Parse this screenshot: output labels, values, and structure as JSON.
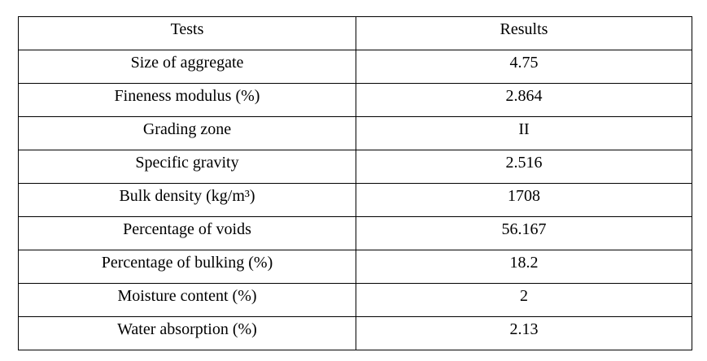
{
  "table": {
    "header": [
      "Tests",
      "Results"
    ],
    "rows": [
      [
        "Size of aggregate",
        "4.75"
      ],
      [
        "Fineness modulus (%)",
        "2.864"
      ],
      [
        "Grading zone",
        "II"
      ],
      [
        "Specific gravity",
        "2.516"
      ],
      [
        "Bulk density (kg/m³)",
        "1708"
      ],
      [
        "Percentage of voids",
        "56.167"
      ],
      [
        "Percentage of bulking (%)",
        "18.2"
      ],
      [
        "Moisture content (%)",
        "2"
      ],
      [
        "Water absorption (%)",
        "2.13"
      ]
    ]
  }
}
